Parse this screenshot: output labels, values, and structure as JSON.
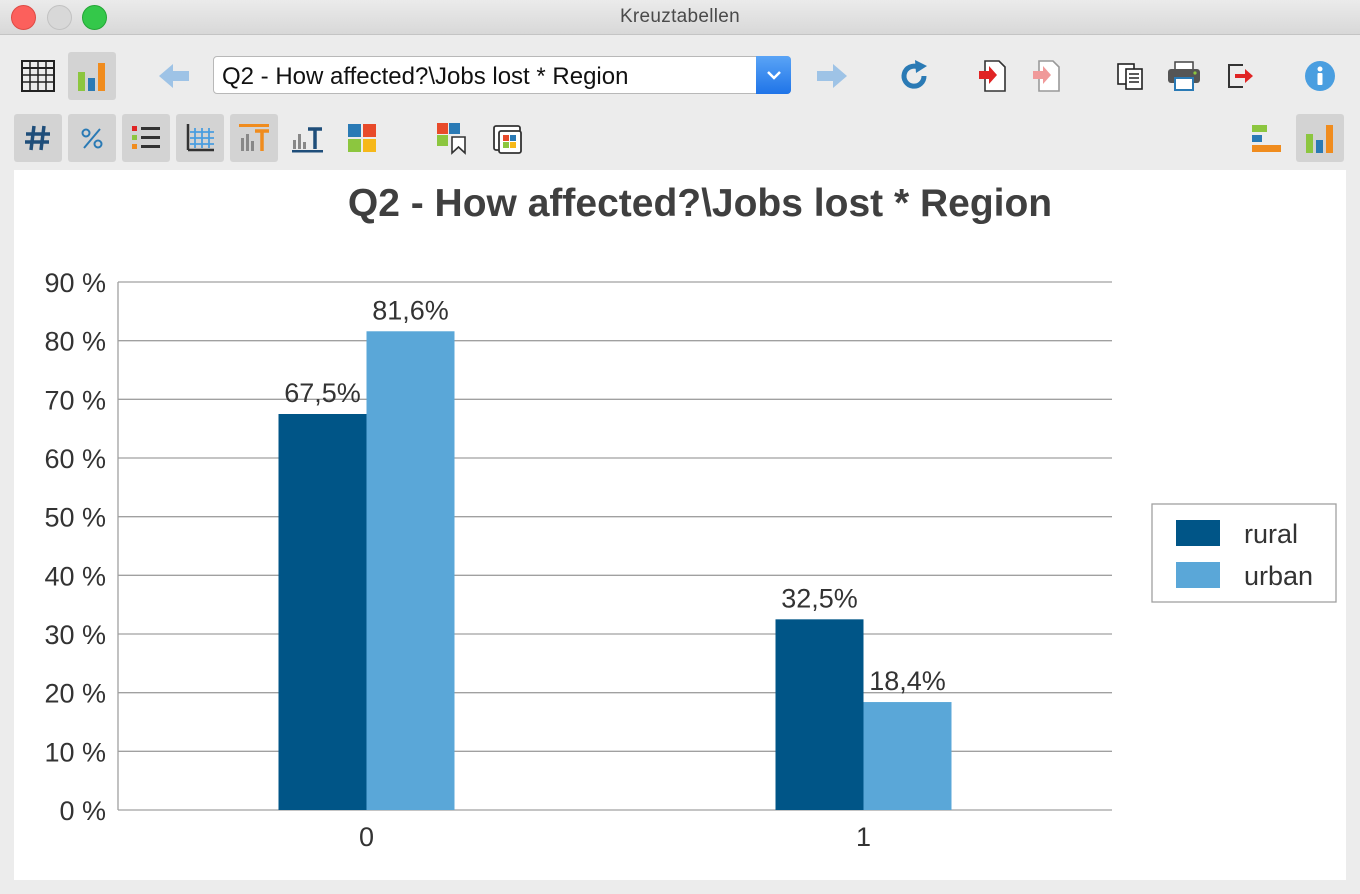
{
  "window": {
    "title": "Kreuztabellen"
  },
  "toolbar": {
    "table_selector": {
      "value": "Q2 - How affected?\\Jobs lost * Region"
    },
    "icons": {
      "table_view": "table-icon",
      "chart_view": "bar-chart-icon",
      "back": "arrow-left-icon",
      "forward": "arrow-right-icon",
      "refresh": "refresh-icon",
      "export_excel": "export-icon",
      "export_alt": "export-alt-icon",
      "copy": "copy-icon",
      "print": "printer-icon",
      "exit": "exit-icon",
      "info": "info-icon"
    },
    "row2_icons": {
      "absolute": "hash-icon",
      "percent": "percent-icon",
      "rows": "list-rows-icon",
      "grid": "grid-icon",
      "labels_top": "label-top-icon",
      "labels_bar": "bar-label-icon",
      "colors": "color-palette-icon",
      "bookmark": "bookmark-colors-icon",
      "window": "window-icon",
      "horizontal": "horizontal-bars-icon",
      "vertical": "vertical-bars-icon"
    },
    "colors": {
      "accent_blue": "#1f74e8",
      "icon_red": "#e02424",
      "icon_blue": "#2a7ab5"
    }
  },
  "chart_data": {
    "type": "bar",
    "title": "Q2 - How affected?\\Jobs lost * Region",
    "xlabel": "",
    "ylabel": "",
    "categories": [
      "0",
      "1"
    ],
    "series": [
      {
        "name": "rural",
        "values": [
          67.5,
          32.5
        ],
        "color": "#005587",
        "labels": [
          "67,5%",
          "32,5%"
        ]
      },
      {
        "name": "urban",
        "values": [
          81.6,
          18.4
        ],
        "color": "#5aa7d8",
        "labels": [
          "81,6%",
          "18,4%"
        ]
      }
    ],
    "ylim": [
      0,
      90
    ],
    "yticks": [
      "0 %",
      "10 %",
      "20 %",
      "30 %",
      "40 %",
      "50 %",
      "60 %",
      "70 %",
      "80 %",
      "90 %"
    ],
    "grid": true,
    "legend": "right"
  }
}
